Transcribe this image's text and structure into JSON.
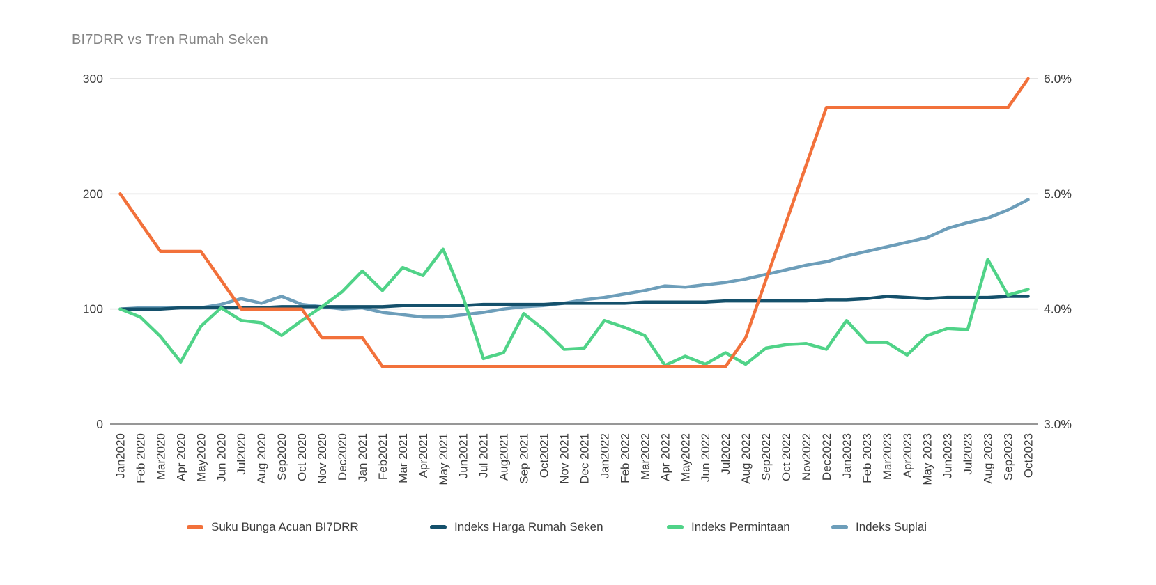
{
  "title": "BI7DRR vs Tren Rumah Seken",
  "chart_data": {
    "type": "line",
    "title": "BI7DRR vs Tren Rumah Seken",
    "grid": true,
    "legend_position": "bottom",
    "x_labels": [
      "Jan2020",
      "Feb 2020",
      "Mar2020",
      "Apr 2020",
      "May2020",
      "Jun 2020",
      "Jul2020",
      "Aug 2020",
      "Sep2020",
      "Oct 2020",
      "Nov 2020",
      "Dec2020",
      "Jan 2021",
      "Feb2021",
      "Mar 2021",
      "Apr2021",
      "May 2021",
      "Jun2021",
      "Jul 2021",
      "Aug2021",
      "Sep 2021",
      "Oct2021",
      "Nov 2021",
      "Dec 2021",
      "Jan2022",
      "Feb 2022",
      "Mar2022",
      "Apr 2022",
      "May2022",
      "Jun 2022",
      "Jul2022",
      "Aug 2022",
      "Sep2022",
      "Oct 2022",
      "Nov2022",
      "Dec2022",
      "Jan2023",
      "Feb 2023",
      "Mar2023",
      "Apr2023",
      "May 2023",
      "Jun2023",
      "Jul2023",
      "Aug 2023",
      "Sep2023",
      "Oct2023"
    ],
    "left_axis": {
      "range": [
        0,
        300
      ],
      "tick_values": [
        0,
        100,
        200,
        300
      ],
      "tick_labels": [
        "0",
        "100",
        "200",
        "300"
      ]
    },
    "right_axis": {
      "range": [
        3,
        6
      ],
      "tick_values": [
        3,
        4,
        5,
        6
      ],
      "tick_labels": [
        "3.0%",
        "4.0%",
        "5.0%",
        "6.0%"
      ]
    },
    "series": [
      {
        "name": "Suku Bunga Acuan BI7DRR",
        "axis": "right",
        "color": "#F2713B",
        "values": [
          5.0,
          4.75,
          4.5,
          4.5,
          4.5,
          4.25,
          4.0,
          4.0,
          4.0,
          4.0,
          3.75,
          3.75,
          3.75,
          3.5,
          3.5,
          3.5,
          3.5,
          3.5,
          3.5,
          3.5,
          3.5,
          3.5,
          3.5,
          3.5,
          3.5,
          3.5,
          3.5,
          3.5,
          3.5,
          3.5,
          3.5,
          3.75,
          4.25,
          4.75,
          5.25,
          5.75,
          5.75,
          5.75,
          5.75,
          5.75,
          5.75,
          5.75,
          5.75,
          5.75,
          5.75,
          6.0
        ]
      },
      {
        "name": "Indeks Harga Rumah Seken",
        "axis": "left",
        "color": "#14506B",
        "values": [
          100,
          100,
          100,
          101,
          101,
          101,
          101,
          101,
          102,
          102,
          102,
          102,
          102,
          102,
          103,
          103,
          103,
          103,
          104,
          104,
          104,
          104,
          105,
          105,
          105,
          105,
          106,
          106,
          106,
          106,
          107,
          107,
          107,
          107,
          107,
          108,
          108,
          109,
          111,
          110,
          109,
          110,
          110,
          110,
          111,
          111
        ]
      },
      {
        "name": "Indeks Permintaan",
        "axis": "left",
        "color": "#50D388",
        "values": [
          100,
          93,
          76,
          54,
          85,
          101,
          90,
          88,
          77,
          90,
          102,
          115,
          133,
          116,
          136,
          129,
          152,
          110,
          57,
          62,
          96,
          82,
          65,
          66,
          90,
          84,
          77,
          51,
          59,
          52,
          62,
          52,
          66,
          69,
          70,
          65,
          90,
          71,
          71,
          60,
          77,
          83,
          82,
          143,
          112,
          117
        ]
      },
      {
        "name": "Indeks Suplai",
        "axis": "left",
        "color": "#6D9EBA",
        "values": [
          100,
          101,
          101,
          101,
          101,
          104,
          109,
          105,
          111,
          104,
          102,
          100,
          101,
          97,
          95,
          93,
          93,
          95,
          97,
          100,
          102,
          103,
          105,
          108,
          110,
          113,
          116,
          120,
          119,
          121,
          123,
          126,
          130,
          134,
          138,
          141,
          146,
          150,
          154,
          158,
          162,
          170,
          175,
          179,
          186,
          195
        ]
      }
    ],
    "legend_item_x": [
      268,
      617,
      957,
      1193
    ],
    "style": {
      "gridline_color": "#DBDBDB",
      "baseline_color": "#757575",
      "tick_label_color": "#3d3d3d",
      "title_color": "#848484"
    }
  }
}
